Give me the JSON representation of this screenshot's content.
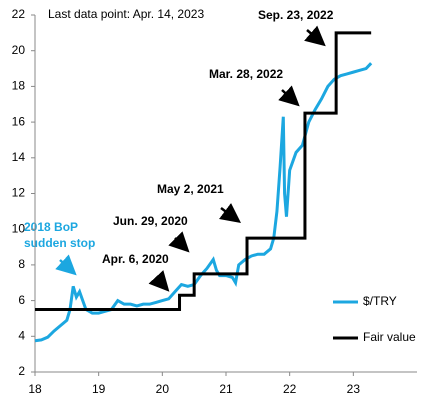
{
  "chart_data": {
    "type": "line",
    "annotations": {
      "last_point": "Last data point: Apr. 14, 2023",
      "sep": "Sep. 23, 2022",
      "mar": "Mar. 28, 2022",
      "may": "May 2, 2021",
      "jun": "Jun. 29, 2020",
      "apr": "Apr. 6, 2020",
      "bop": [
        "2018 BoP",
        "sudden stop"
      ]
    },
    "xlim": [
      18,
      24
    ],
    "xticks": [
      18,
      19,
      20,
      21,
      22,
      23
    ],
    "ylim": [
      2,
      22
    ],
    "yticks": [
      2,
      4,
      6,
      8,
      10,
      12,
      14,
      16,
      18,
      20,
      22
    ],
    "series": [
      {
        "name": "$/TRY",
        "color": "#1ca7e0",
        "x": [
          18.0,
          18.1,
          18.2,
          18.3,
          18.4,
          18.5,
          18.55,
          18.6,
          18.65,
          18.7,
          18.75,
          18.8,
          18.9,
          19.0,
          19.1,
          19.2,
          19.3,
          19.4,
          19.5,
          19.6,
          19.7,
          19.8,
          19.9,
          20.0,
          20.1,
          20.2,
          20.3,
          20.4,
          20.5,
          20.6,
          20.7,
          20.8,
          20.85,
          20.9,
          21.0,
          21.1,
          21.15,
          21.2,
          21.3,
          21.4,
          21.5,
          21.6,
          21.7,
          21.75,
          21.8,
          21.85,
          21.9,
          21.92,
          21.95,
          22.0,
          22.05,
          22.1,
          22.2,
          22.3,
          22.4,
          22.5,
          22.6,
          22.7,
          22.8,
          22.9,
          23.0,
          23.1,
          23.2,
          23.28
        ],
        "values": [
          3.75,
          3.8,
          3.95,
          4.3,
          4.6,
          4.9,
          5.5,
          6.8,
          6.2,
          6.5,
          6.0,
          5.5,
          5.3,
          5.3,
          5.4,
          5.5,
          6.0,
          5.8,
          5.8,
          5.7,
          5.8,
          5.8,
          5.9,
          6.0,
          6.1,
          6.5,
          6.9,
          6.8,
          6.9,
          7.4,
          7.8,
          8.3,
          7.7,
          7.4,
          7.4,
          7.3,
          7.0,
          8.0,
          8.3,
          8.5,
          8.6,
          8.6,
          8.9,
          9.5,
          11,
          13.5,
          16.3,
          12,
          10.7,
          13.3,
          13.8,
          14.3,
          14.7,
          16.0,
          16.7,
          17.3,
          18.0,
          18.4,
          18.6,
          18.7,
          18.8,
          18.9,
          19.0,
          19.3
        ]
      },
      {
        "name": "Fair value",
        "color": "#000000",
        "step": "post",
        "x": [
          18,
          20.27,
          20.5,
          21.33,
          22.24,
          22.73,
          23.28
        ],
        "values": [
          5.5,
          6.3,
          7.5,
          9.5,
          16.5,
          21,
          21
        ]
      }
    ]
  }
}
